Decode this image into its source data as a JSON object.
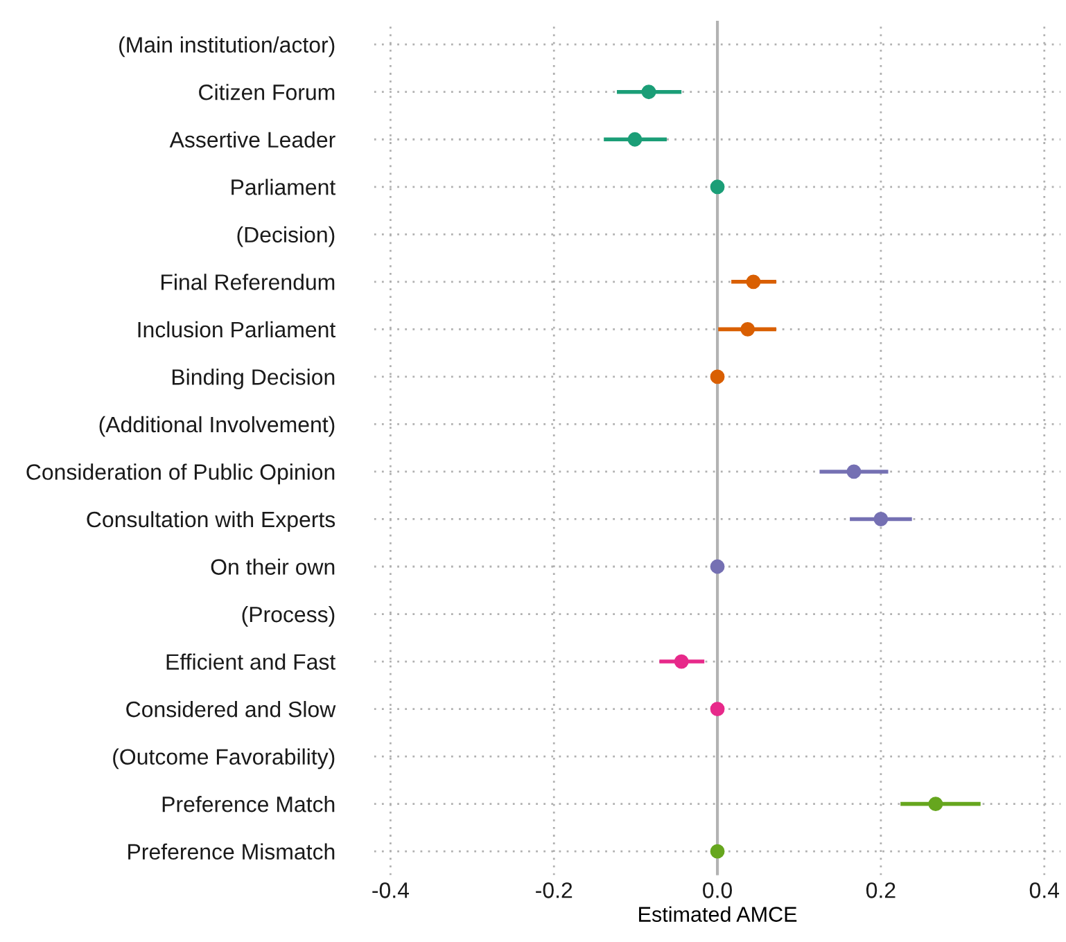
{
  "chart_data": {
    "type": "scatter",
    "orientation": "horizontal",
    "xlabel": "Estimated AMCE",
    "categories": [
      "(Main institution/actor)",
      "Citizen Forum",
      "Assertive Leader",
      "Parliament",
      "(Decision)",
      "Final Referendum",
      "Inclusion Parliament",
      "Binding Decision",
      "(Additional Involvement)",
      "Consideration of Public Opinion",
      "Consultation with Experts",
      "On their own",
      "(Process)",
      "Efficient and Fast",
      "Considered and Slow",
      "(Outcome Favorability)",
      "Preference Match",
      "Preference Mismatch"
    ],
    "values": [
      null,
      -0.084,
      -0.101,
      0,
      null,
      0.044,
      0.037,
      0,
      null,
      0.167,
      0.2,
      0,
      null,
      -0.044,
      0,
      null,
      0.267,
      0
    ],
    "errors": [
      null,
      [
        -0.123,
        -0.044
      ],
      [
        -0.139,
        -0.062
      ],
      null,
      null,
      [
        0.017,
        0.072
      ],
      [
        0.001,
        0.072
      ],
      null,
      null,
      [
        0.125,
        0.209
      ],
      [
        0.162,
        0.238
      ],
      null,
      null,
      [
        -0.071,
        -0.016
      ],
      null,
      null,
      [
        0.224,
        0.322
      ],
      null
    ],
    "colors": [
      null,
      "#1b9e77",
      "#1b9e77",
      "#1b9e77",
      null,
      "#d95f02",
      "#d95f02",
      "#d95f02",
      null,
      "#7570b3",
      "#7570b3",
      "#7570b3",
      null,
      "#e7298a",
      "#e7298a",
      null,
      "#66a61e",
      "#66a61e"
    ],
    "xlim": [
      -0.42,
      0.42
    ],
    "xticks": [
      -0.4,
      -0.2,
      {
        "value": 0,
        "label": "0.0"
      },
      0.2,
      0.4
    ],
    "ref_lines": [
      {
        "axis": "x",
        "value": 0,
        "color": "#b3b3b3"
      }
    ],
    "grid": true,
    "marker": "circle"
  }
}
